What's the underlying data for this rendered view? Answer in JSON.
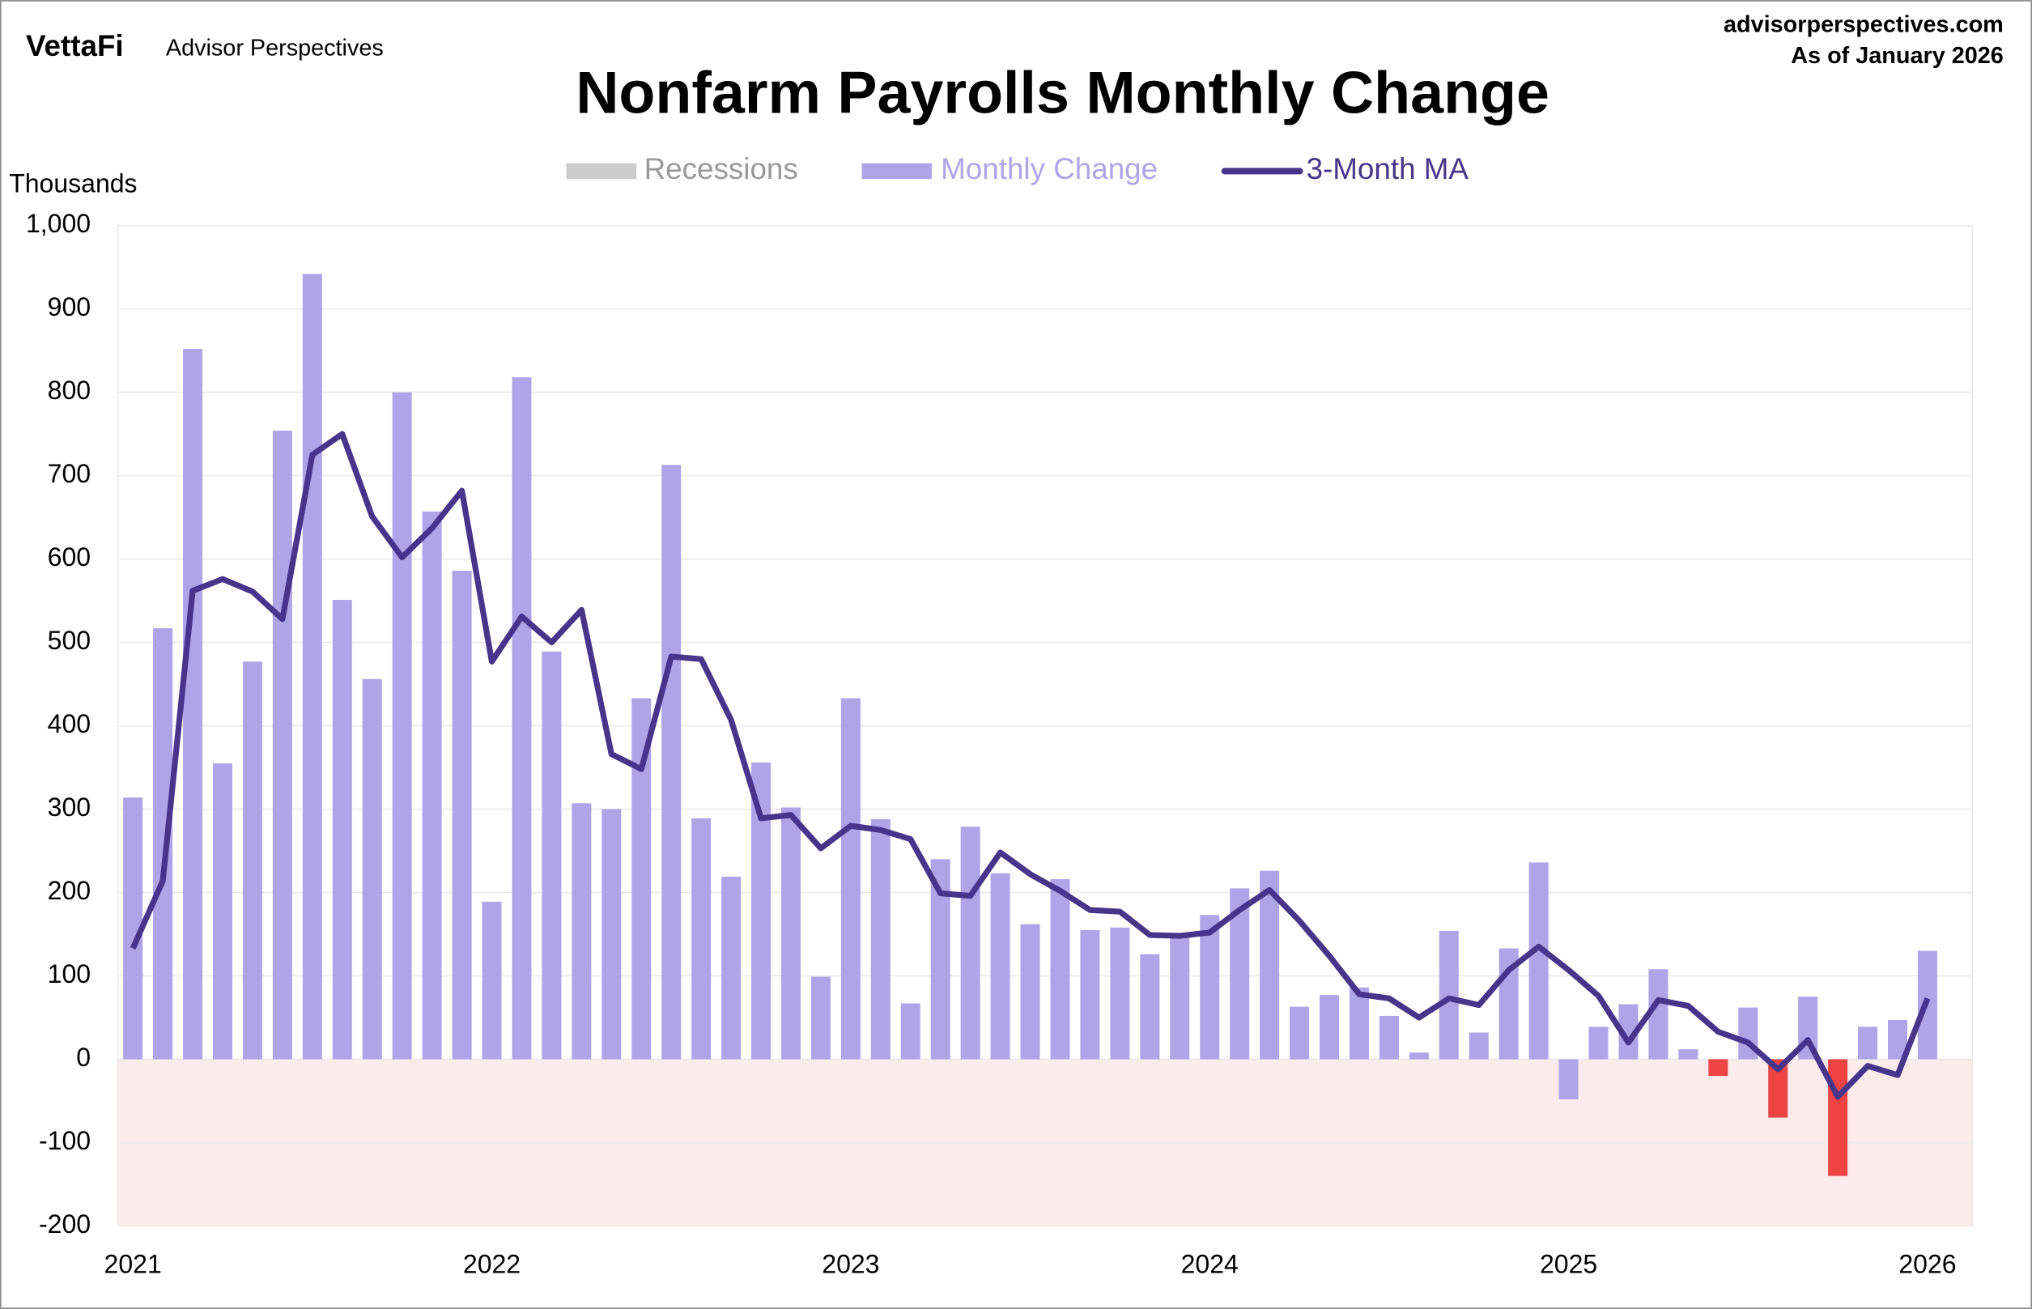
{
  "brand": {
    "logo": "VettaFi",
    "name": "Advisor Perspectives",
    "site": "advisorperspectives.com",
    "date_note": "As of January 2026"
  },
  "chart_data": {
    "type": "bar_line",
    "title": "Nonfarm Payrolls Monthly Change",
    "y_label": "Thousands",
    "categories": [
      "2021",
      null,
      null,
      null,
      null,
      null,
      null,
      null,
      null,
      null,
      null,
      null,
      "2022",
      null,
      null,
      null,
      null,
      null,
      null,
      null,
      null,
      null,
      null,
      null,
      "2023",
      null,
      null,
      null,
      null,
      null,
      null,
      null,
      null,
      null,
      null,
      null,
      "2024",
      null,
      null,
      null,
      null,
      null,
      null,
      null,
      null,
      null,
      null,
      null,
      "2025",
      null,
      null,
      null,
      null,
      null,
      null,
      null,
      null,
      null,
      null,
      null,
      "2026"
    ],
    "recessions": {
      "name": "Recessions",
      "color": "#cccccc"
    },
    "series": [
      {
        "name": "Monthly Change",
        "type": "bar",
        "color": "#b0a4e8",
        "values": [
          314,
          517,
          852,
          355,
          477,
          754,
          942,
          551,
          456,
          800,
          657,
          586,
          189,
          818,
          489,
          307,
          300,
          433,
          713,
          289,
          219,
          356,
          302,
          99,
          433,
          288,
          67,
          240,
          279,
          223,
          162,
          216,
          155,
          158,
          126,
          148,
          173,
          205,
          226,
          63,
          77,
          86,
          52,
          8,
          154,
          32,
          133,
          236,
          -48,
          39,
          66,
          108,
          12,
          -20,
          62,
          -70,
          75,
          -140,
          39,
          47,
          130
        ],
        "colors": [
          "#b0a4e8",
          "#b0a4e8",
          "#b0a4e8",
          "#b0a4e8",
          "#b0a4e8",
          "#b0a4e8",
          "#b0a4e8",
          "#b0a4e8",
          "#b0a4e8",
          "#b0a4e8",
          "#b0a4e8",
          "#b0a4e8",
          "#b0a4e8",
          "#b0a4e8",
          "#b0a4e8",
          "#b0a4e8",
          "#b0a4e8",
          "#b0a4e8",
          "#b0a4e8",
          "#b0a4e8",
          "#b0a4e8",
          "#b0a4e8",
          "#b0a4e8",
          "#b0a4e8",
          "#b0a4e8",
          "#b0a4e8",
          "#b0a4e8",
          "#b0a4e8",
          "#b0a4e8",
          "#b0a4e8",
          "#b0a4e8",
          "#b0a4e8",
          "#b0a4e8",
          "#b0a4e8",
          "#b0a4e8",
          "#b0a4e8",
          "#b0a4e8",
          "#b0a4e8",
          "#b0a4e8",
          "#b0a4e8",
          "#b0a4e8",
          "#b0a4e8",
          "#b0a4e8",
          "#b0a4e8",
          "#b0a4e8",
          "#b0a4e8",
          "#b0a4e8",
          "#b0a4e8",
          "#b0a4e8",
          "#b0a4e8",
          "#b0a4e8",
          "#b0a4e8",
          "#b0a4e8",
          "#ee4444",
          "#b0a4e8",
          "#ee4444",
          "#b0a4e8",
          "#ee4444",
          "#b0a4e8",
          "#b0a4e8",
          "#b0a4e8"
        ]
      },
      {
        "name": "3-Month MA",
        "type": "line",
        "color": "#46358a",
        "values": [
          133,
          214,
          562,
          576,
          561,
          528,
          725,
          750,
          651,
          602,
          637,
          682,
          477,
          531,
          500,
          539,
          366,
          348,
          483,
          480,
          407,
          289,
          293,
          253,
          280,
          275,
          264,
          199,
          196,
          248,
          222,
          202,
          179,
          177,
          149,
          148,
          152,
          179,
          203,
          166,
          124,
          78,
          73,
          50,
          73,
          65,
          107,
          135,
          107,
          76,
          20,
          71,
          64,
          33,
          20,
          -12,
          23,
          -45,
          -8,
          -19,
          73
        ]
      }
    ],
    "ylim": [
      -200,
      1000
    ],
    "yticks": [
      -200,
      -100,
      0,
      100,
      200,
      300,
      400,
      500,
      600,
      700,
      800,
      900,
      {
        "value": 1000,
        "label": "1,000"
      }
    ],
    "grid": true,
    "negative_shade": "#fdeaea"
  }
}
